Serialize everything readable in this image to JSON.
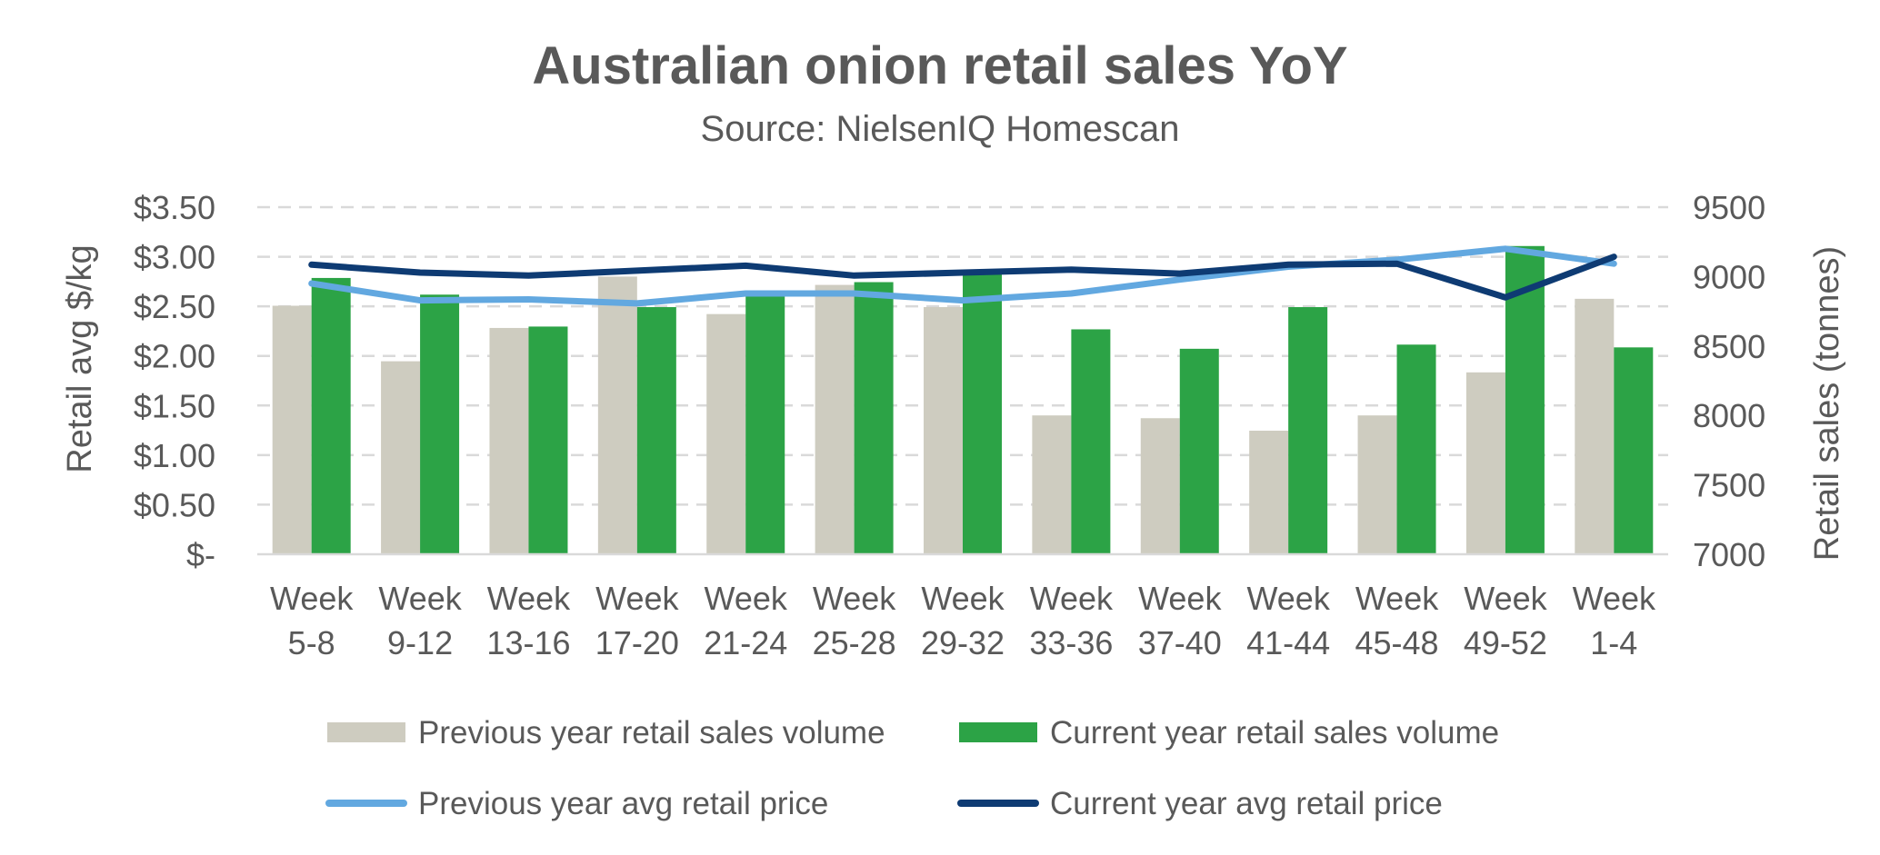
{
  "chart_data": {
    "type": "bar",
    "combo": "bar-line",
    "title": "Australian onion retail sales YoY",
    "subtitle": "Source: NielsenIQ Homescan",
    "categories": [
      [
        "Week",
        "5-8"
      ],
      [
        "Week",
        "9-12"
      ],
      [
        "Week",
        "13-16"
      ],
      [
        "Week",
        "17-20"
      ],
      [
        "Week",
        "21-24"
      ],
      [
        "Week",
        "25-28"
      ],
      [
        "Week",
        "29-32"
      ],
      [
        "Week",
        "33-36"
      ],
      [
        "Week",
        "37-40"
      ],
      [
        "Week",
        "41-44"
      ],
      [
        "Week",
        "45-48"
      ],
      [
        "Week",
        "49-52"
      ],
      [
        "Week",
        "1-4"
      ]
    ],
    "y_left": {
      "label": "Retail avg $/kg",
      "range": [
        0,
        3.5
      ],
      "ticks": [
        0,
        0.5,
        1.0,
        1.5,
        2.0,
        2.5,
        3.0,
        3.5
      ],
      "tick_labels": [
        "$-",
        "$0.50",
        "$1.00",
        "$1.50",
        "$2.00",
        "$2.50",
        "$3.00",
        "$3.50"
      ]
    },
    "y_right": {
      "label": "Retail sales (tonnes)",
      "range": [
        7000,
        9500
      ],
      "ticks": [
        7000,
        7500,
        8000,
        8500,
        9000,
        9500
      ],
      "tick_labels": [
        "7000",
        "7500",
        "8000",
        "8500",
        "9000",
        "9500"
      ]
    },
    "grid": true,
    "legend_position": "bottom",
    "series": [
      {
        "name": "Previous year retail sales volume",
        "kind": "bar",
        "axis": "right",
        "color": "#ceccc0",
        "values": [
          8790,
          8390,
          8630,
          9000,
          8730,
          8940,
          8780,
          8000,
          7980,
          7890,
          8000,
          8310,
          8840
        ]
      },
      {
        "name": "Current year retail sales volume",
        "kind": "bar",
        "axis": "right",
        "color": "#2ca346",
        "values": [
          8990,
          8870,
          8640,
          8780,
          8880,
          8960,
          9040,
          8620,
          8480,
          8780,
          8510,
          9220,
          8490
        ]
      },
      {
        "name": "Previous year avg retail price",
        "kind": "line",
        "axis": "left",
        "color": "#62a8e0",
        "values": [
          2.73,
          2.56,
          2.57,
          2.53,
          2.63,
          2.63,
          2.56,
          2.63,
          2.77,
          2.9,
          2.97,
          3.08,
          2.93
        ]
      },
      {
        "name": "Current year avg retail price",
        "kind": "line",
        "axis": "left",
        "color": "#0e3b73",
        "values": [
          2.92,
          2.84,
          2.81,
          2.86,
          2.91,
          2.81,
          2.84,
          2.87,
          2.83,
          2.92,
          2.93,
          2.59,
          3.0
        ]
      }
    ]
  }
}
